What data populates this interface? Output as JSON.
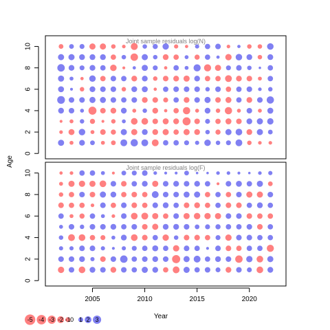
{
  "chart_data": {
    "type": "scatter",
    "subtype": "bubble-residual-grid",
    "xlabel": "Year",
    "ylabel": "Age",
    "x_ticks": [
      2005,
      2010,
      2015,
      2020
    ],
    "y_ticks": [
      0,
      2,
      4,
      6,
      8,
      10
    ],
    "years": [
      2002,
      2003,
      2004,
      2005,
      2006,
      2007,
      2008,
      2009,
      2010,
      2011,
      2012,
      2013,
      2014,
      2015,
      2016,
      2017,
      2018,
      2019,
      2020,
      2021,
      2022
    ],
    "ages": [
      1,
      2,
      3,
      4,
      5,
      6,
      7,
      8,
      9,
      10
    ],
    "xlim": [
      2000.5,
      2023.5
    ],
    "ylim": [
      -0.5,
      11
    ],
    "colors": {
      "negative": "#ff5555",
      "positive": "#5555ee"
    },
    "legend": {
      "values": [
        -5,
        -4,
        -3,
        -2,
        -1,
        0,
        1,
        2,
        3
      ],
      "labels": [
        "-5",
        "-4",
        "-3",
        "-2",
        "-1",
        "0",
        "1",
        "2",
        "3"
      ],
      "placement": "bottom-left"
    },
    "panels": [
      {
        "title": "Joint sample residuals log(N)",
        "residuals": [
          [
            1.6,
            -0.6,
            1.4,
            0.9,
            -0.6,
            -0.9,
            2.0,
            2.3,
            2.0,
            -2.0,
            1.2,
            1.2,
            1.0,
            0.7,
            1.8,
            0.8,
            1.0,
            2.0,
            -0.8,
            -0.5,
            -0.5
          ],
          [
            -0.5,
            -1.5,
            1.8,
            -0.6,
            -1.3,
            -1.1,
            1.6,
            -1.6,
            1.4,
            -1.4,
            -1.6,
            -1.2,
            -1.6,
            -1.4,
            0.8,
            -1.1,
            1.6,
            1.9,
            -1.4,
            1.6,
            0.9
          ],
          [
            -0.3,
            -0.6,
            0.8,
            -1.1,
            -0.3,
            -0.8,
            0.6,
            -1.9,
            -1.9,
            -1.3,
            -1.5,
            -1.4,
            -2.8,
            -1.3,
            1.0,
            -1.2,
            -1.5,
            -1.3,
            1.4,
            1.6,
            1.7
          ],
          [
            1.4,
            1.3,
            0.6,
            -2.8,
            -1.3,
            -1.4,
            1.4,
            -0.6,
            0.8,
            -1.4,
            -0.4,
            -1.2,
            -2.3,
            -0.6,
            1.4,
            -0.8,
            -2.3,
            -0.6,
            1.3,
            -0.6,
            1.5
          ],
          [
            2.6,
            1.3,
            1.3,
            1.6,
            1.5,
            1.3,
            1.2,
            1.3,
            -1.4,
            -1.3,
            -1.0,
            1.2,
            -1.4,
            1.3,
            1.6,
            -1.3,
            -1.5,
            1.2,
            -1.4,
            1.3,
            2.3
          ],
          [
            1.5,
            0.3,
            -0.8,
            1.4,
            1.3,
            1.3,
            -0.8,
            1.4,
            1.5,
            -0.4,
            1.2,
            1.3,
            1.3,
            1.3,
            0.8,
            1.3,
            -1.2,
            1.2,
            1.3,
            0.5,
            0.8
          ],
          [
            1.6,
            0.6,
            -0.4,
            1.8,
            -1.2,
            1.3,
            1.2,
            -1.4,
            1.4,
            -0.8,
            -1.3,
            -1.4,
            -1.6,
            1.4,
            -1.2,
            -1.2,
            -2.0,
            -1.4,
            -1.3,
            -0.6,
            1.2
          ],
          [
            2.4,
            1.4,
            1.0,
            1.4,
            1.2,
            -1.8,
            -0.3,
            0.4,
            1.6,
            1.0,
            -0.4,
            1.2,
            0.6,
            2.2,
            -2.2,
            -1.6,
            1.0,
            1.3,
            0.8,
            0.2,
            1.2
          ],
          [
            1.6,
            1.6,
            1.4,
            1.4,
            1.4,
            -1.2,
            0.8,
            -2.4,
            1.6,
            0.8,
            -1.4,
            -1.2,
            0.6,
            -1.1,
            1.2,
            0.4,
            -1.7,
            1.8,
            1.4,
            -0.8,
            1.4
          ],
          [
            -0.9,
            0.9,
            1.0,
            -1.6,
            -1.6,
            -0.8,
            -0.5,
            -2.1,
            0.8,
            1.1,
            1.7,
            -0.7,
            -0.4,
            0.7,
            1.2,
            1.3,
            -0.5,
            0.4,
            -0.8,
            -0.8,
            1.8
          ]
        ]
      },
      {
        "title": "Joint sample residuals log(F)",
        "residuals": [
          [
            -1.7,
            1.3,
            -1.9,
            1.4,
            1.3,
            -1.4,
            1.3,
            1.2,
            1.6,
            1.4,
            -1.2,
            -2.0,
            1.6,
            1.2,
            1.3,
            1.0,
            -1.4,
            1.3,
            1.0,
            -1.9,
            1.4
          ],
          [
            1.3,
            1.3,
            1.4,
            0.7,
            -1.3,
            1.3,
            2.4,
            1.2,
            1.3,
            1.4,
            1.3,
            -2.9,
            1.6,
            2.0,
            1.2,
            1.4,
            1.3,
            -2.4,
            1.7,
            -1.9,
            1.6
          ],
          [
            0.7,
            0.7,
            1.3,
            1.3,
            0.7,
            0.3,
            0.7,
            1.0,
            1.2,
            1.5,
            1.2,
            -1.7,
            1.3,
            1.2,
            0.3,
            1.3,
            -1.3,
            -1.2,
            1.2,
            1.2,
            -2.2
          ],
          [
            0.8,
            -2.0,
            -1.9,
            -1.2,
            -1.0,
            0.6,
            1.4,
            -1.9,
            -1.3,
            1.2,
            -1.7,
            0.8,
            -1.3,
            -1.3,
            -1.2,
            1.0,
            -1.7,
            1.3,
            1.3,
            1.2,
            1.2
          ],
          [
            0.6,
            1.3,
            0.8,
            1.3,
            1.3,
            1.4,
            1.2,
            1.3,
            -1.3,
            -1.6,
            1.4,
            1.4,
            1.3,
            0.9,
            1.0,
            1.1,
            1.2,
            1.2,
            1.3,
            -1.3,
            1.2
          ],
          [
            1.2,
            -0.6,
            -1.1,
            1.2,
            0.6,
            -0.5,
            1.3,
            -1.9,
            -2.0,
            -1.6,
            -1.2,
            1.3,
            -1.6,
            -1.8,
            -1.7,
            -1.6,
            1.3,
            1.3,
            -1.3,
            -1.2,
            -1.2
          ],
          [
            -1.3,
            -1.2,
            -1.2,
            -0.5,
            1.3,
            -1.2,
            1.3,
            -1.3,
            -1.2,
            1.3,
            1.4,
            1.2,
            -1.3,
            -1.4,
            -1.2,
            1.2,
            -1.3,
            -1.3,
            1.2,
            1.4,
            1.2
          ],
          [
            -0.8,
            -1.2,
            1.3,
            -1.3,
            1.6,
            1.4,
            -1.2,
            -1.3,
            -1.2,
            2.0,
            1.3,
            1.3,
            1.5,
            1.6,
            -1.2,
            1.2,
            -1.2,
            1.3,
            -1.6,
            -1.6,
            1.3
          ],
          [
            -0.6,
            -1.6,
            -1.7,
            -1.6,
            -1.9,
            1.3,
            -1.3,
            1.2,
            1.4,
            -1.6,
            1.3,
            1.4,
            1.3,
            1.4,
            1.2,
            -0.3,
            1.3,
            1.5,
            1.2,
            1.6,
            -0.9
          ],
          [
            -0.4,
            -0.5,
            1.2,
            1.2,
            0.6,
            -0.3,
            0.9,
            1.0,
            1.3,
            0.5,
            0.3,
            0.3,
            0.9,
            0.2,
            0.2,
            0.5,
            0.5,
            0.3,
            0.2,
            0.5,
            0.7
          ]
        ]
      }
    ]
  }
}
